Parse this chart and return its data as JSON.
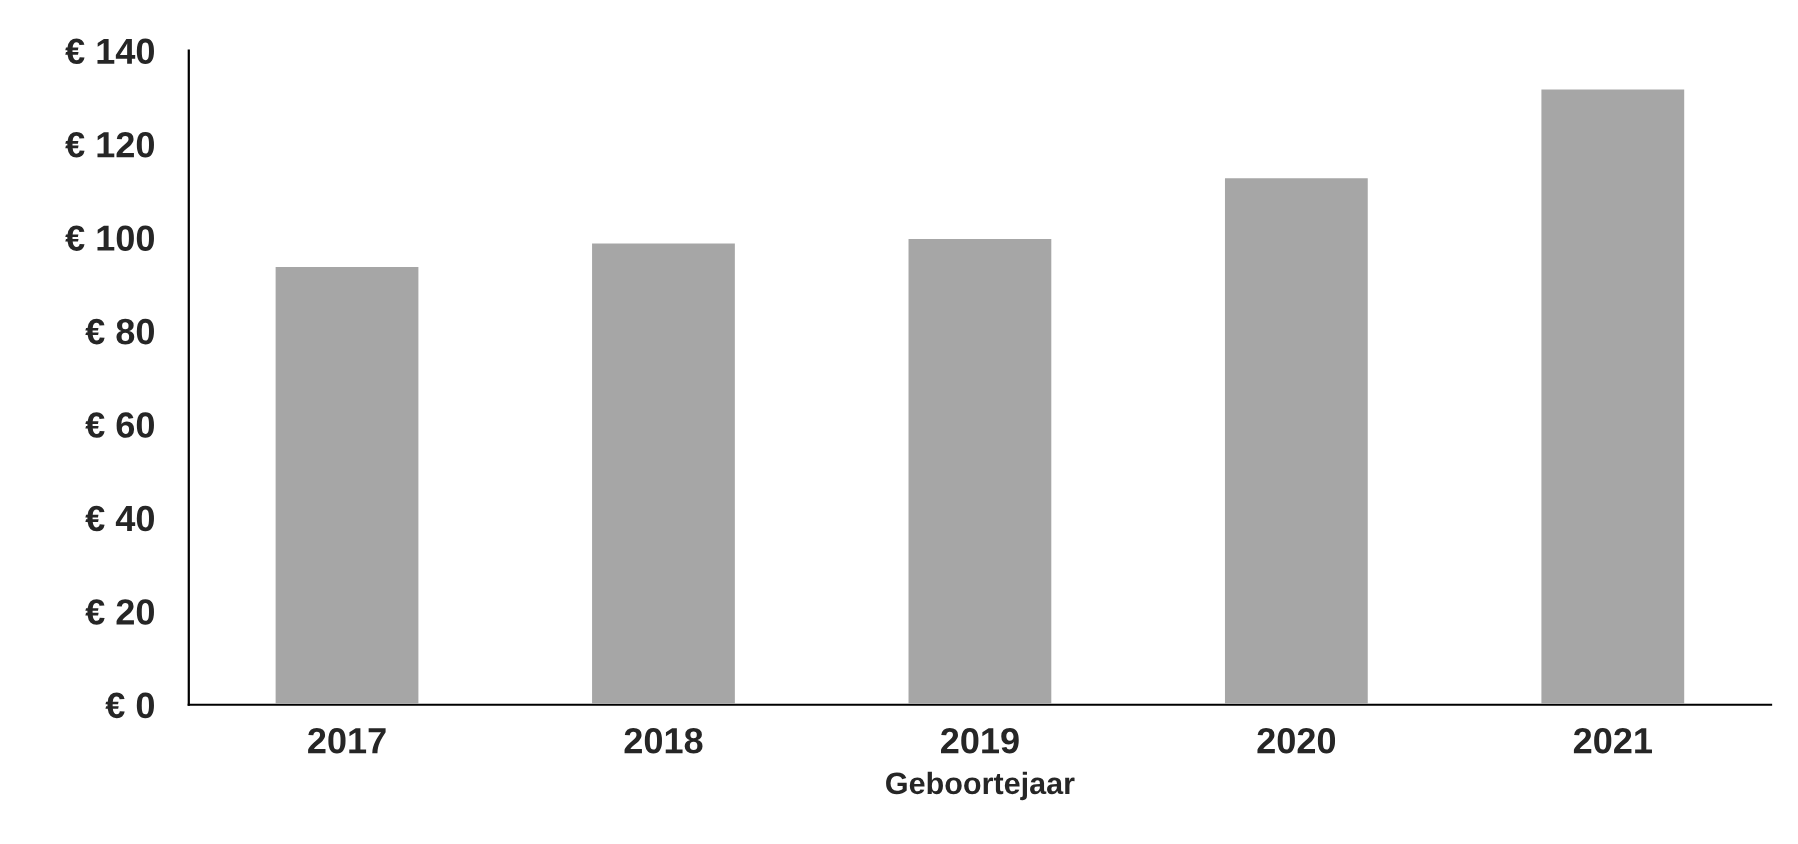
{
  "chart_data": {
    "type": "bar",
    "xlabel": "Geboortejaar",
    "categories": [
      "2017",
      "2018",
      "2019",
      "2020",
      "2021"
    ],
    "values": [
      94,
      99,
      100,
      113,
      132
    ],
    "color": "#a6a6a6",
    "ylim": [
      0,
      140
    ],
    "yticks": [
      {
        "value": 0,
        "label": "€ 0"
      },
      {
        "value": 20,
        "label": "€ 20"
      },
      {
        "value": 40,
        "label": "€ 40"
      },
      {
        "value": 60,
        "label": "€ 60"
      },
      {
        "value": 80,
        "label": "€ 80"
      },
      {
        "value": 100,
        "label": "€ 100"
      },
      {
        "value": 120,
        "label": "€ 120"
      },
      {
        "value": 140,
        "label": "€ 140"
      }
    ],
    "grid": false
  }
}
